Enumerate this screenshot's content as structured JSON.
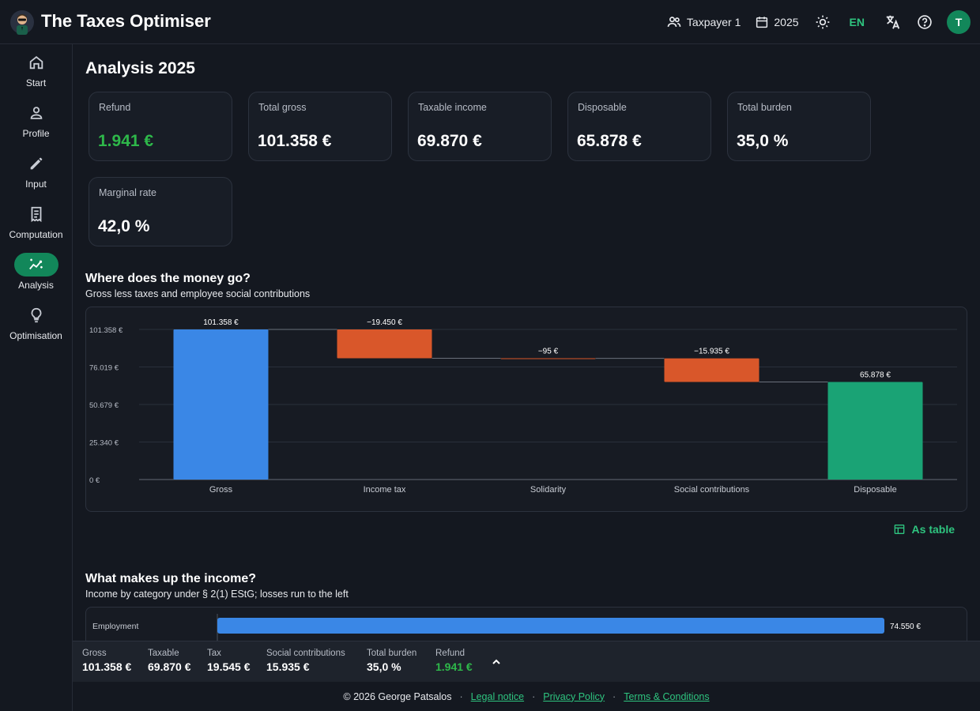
{
  "app": {
    "title": "The Taxes Optimiser"
  },
  "header": {
    "taxpayer_label": "Taxpayer 1",
    "year_label": "2025",
    "language": "EN",
    "avatar_initial": "T"
  },
  "sidebar": {
    "items": [
      {
        "label": "Start",
        "icon": "home-icon",
        "active": false
      },
      {
        "label": "Profile",
        "icon": "person-icon",
        "active": false
      },
      {
        "label": "Input",
        "icon": "pencil-icon",
        "active": false
      },
      {
        "label": "Computation",
        "icon": "receipt-icon",
        "active": false
      },
      {
        "label": "Analysis",
        "icon": "analytics-icon",
        "active": true
      },
      {
        "label": "Optimisation",
        "icon": "lightbulb-icon",
        "active": false
      }
    ]
  },
  "page": {
    "title": "Analysis 2025"
  },
  "kpis": [
    {
      "label": "Refund",
      "value": "1.941 €",
      "highlight": true
    },
    {
      "label": "Total gross",
      "value": "101.358 €",
      "highlight": false
    },
    {
      "label": "Taxable income",
      "value": "69.870 €",
      "highlight": false
    },
    {
      "label": "Disposable",
      "value": "65.878 €",
      "highlight": false
    },
    {
      "label": "Total burden",
      "value": "35,0 %",
      "highlight": false
    },
    {
      "label": "Marginal rate",
      "value": "42,0 %",
      "highlight": false
    }
  ],
  "waterfall": {
    "title": "Where does the money go?",
    "subtitle": "Gross less taxes and employee social contributions",
    "toggle_label": "As table"
  },
  "income": {
    "title": "What makes up the income?",
    "subtitle": "Income by category under § 2(1) EStG; losses run to the left"
  },
  "chart_data": [
    {
      "type": "bar",
      "subtype": "waterfall",
      "categories": [
        "Gross",
        "Income tax",
        "Solidarity",
        "Social contributions",
        "Disposable"
      ],
      "values": [
        101358,
        -19450,
        -95,
        -15935,
        65878
      ],
      "kinds": [
        "total",
        "decrease",
        "decrease",
        "decrease",
        "total"
      ],
      "value_labels": [
        "101.358 €",
        "−19.450 €",
        "−95 €",
        "−15.935 €",
        "65.878 €"
      ],
      "ylim": [
        0,
        101358
      ],
      "yticks": [
        0,
        25340,
        50679,
        76019,
        101358
      ],
      "ytick_labels": [
        "0 €",
        "25.340 €",
        "50.679 €",
        "76.019 €",
        "101.358 €"
      ],
      "grid": true,
      "colors": {
        "total_start": "#3a87e6",
        "decrease": "#d9572a",
        "total_end": "#1aa375"
      }
    },
    {
      "type": "bar",
      "orientation": "horizontal",
      "categories": [
        "Employment"
      ],
      "values": [
        74550
      ],
      "value_labels": [
        "74.550 €"
      ],
      "xlim": [
        0,
        74550
      ],
      "colors": {
        "bar": "#3a87e6"
      }
    }
  ],
  "summary": [
    {
      "label": "Gross",
      "value": "101.358 €",
      "highlight": false
    },
    {
      "label": "Taxable",
      "value": "69.870 €",
      "highlight": false
    },
    {
      "label": "Tax",
      "value": "19.545 €",
      "highlight": false
    },
    {
      "label": "Social contributions",
      "value": "15.935 €",
      "highlight": false
    },
    {
      "label": "Total burden",
      "value": "35,0 %",
      "highlight": false
    },
    {
      "label": "Refund",
      "value": "1.941 €",
      "highlight": true
    }
  ],
  "footer": {
    "copyright": "© 2026 George Patsalos",
    "links": [
      "Legal notice",
      "Privacy Policy",
      "Terms & Conditions"
    ]
  },
  "colors": {
    "accent": "#12875a",
    "link": "#2ec47f",
    "positive": "#2eb84a",
    "background": "#141820"
  }
}
